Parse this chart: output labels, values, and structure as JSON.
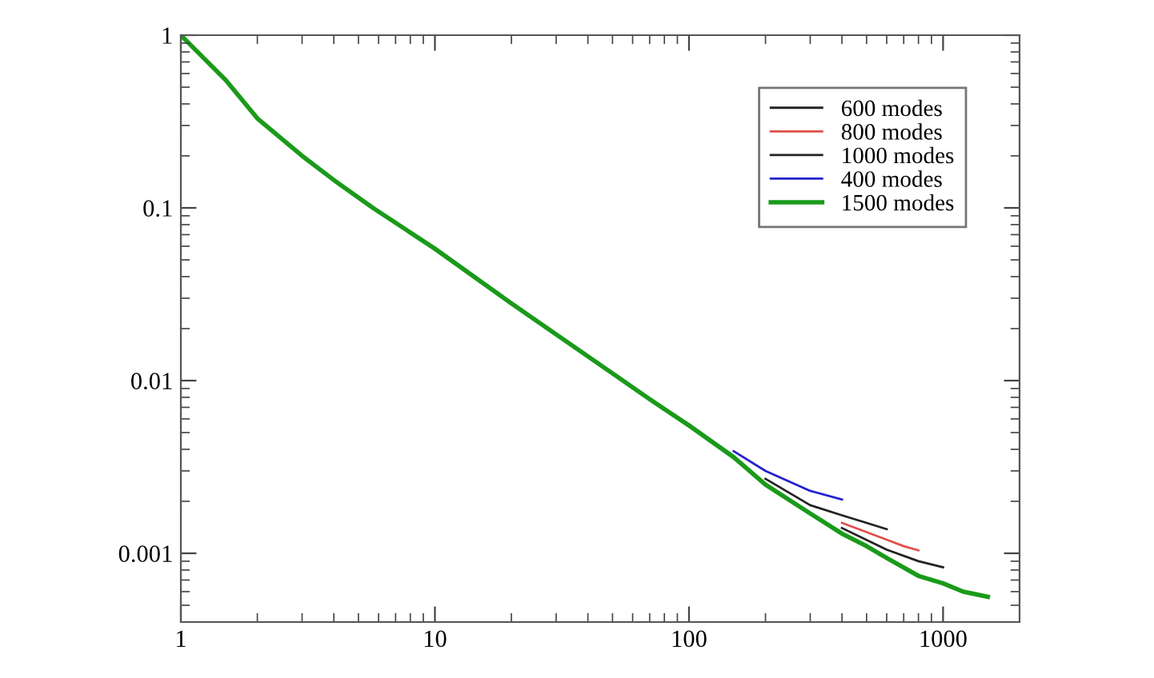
{
  "chart_data": {
    "type": "line",
    "log": "xy",
    "xlim": [
      1,
      2000
    ],
    "ylim": [
      0.0004,
      1
    ],
    "xticks": [
      1,
      10,
      100,
      1000
    ],
    "yticks": [
      0.001,
      0.01,
      0.1,
      1
    ],
    "grid": false,
    "legend": "top right",
    "marker": "none",
    "line_style": "solid",
    "series": [
      {
        "name": "600 modes",
        "color": "#222222",
        "x": [
          200,
          300,
          400,
          500,
          600
        ],
        "values": [
          0.0027,
          0.0019,
          0.00166,
          0.0015,
          0.00138
        ]
      },
      {
        "name": "800 modes",
        "color": "#e0504a",
        "x": [
          400,
          600,
          700,
          800
        ],
        "values": [
          0.0015,
          0.0012,
          0.0011,
          0.00104
        ]
      },
      {
        "name": "1000 modes",
        "color": "#222222",
        "x": [
          400,
          600,
          800,
          1000
        ],
        "values": [
          0.0014,
          0.00105,
          0.0009,
          0.00083
        ]
      },
      {
        "name": "400 modes",
        "color": "#2222cc",
        "x": [
          150,
          200,
          300,
          400
        ],
        "values": [
          0.0039,
          0.003,
          0.0023,
          0.00205
        ]
      },
      {
        "name": "1500 modes",
        "color": "#1a9a1a",
        "x": [
          1,
          1.5,
          2,
          3,
          4,
          5.7,
          8,
          10,
          20,
          30,
          50,
          70,
          100,
          150,
          200,
          300,
          400,
          500,
          600,
          800,
          1000,
          1200,
          1500
        ],
        "values": [
          1,
          0.55,
          0.33,
          0.2,
          0.145,
          0.1,
          0.072,
          0.058,
          0.028,
          0.0185,
          0.011,
          0.0078,
          0.0055,
          0.0036,
          0.0025,
          0.0017,
          0.0013,
          0.0011,
          0.00094,
          0.00074,
          0.00067,
          0.0006,
          0.00056
        ]
      }
    ]
  }
}
